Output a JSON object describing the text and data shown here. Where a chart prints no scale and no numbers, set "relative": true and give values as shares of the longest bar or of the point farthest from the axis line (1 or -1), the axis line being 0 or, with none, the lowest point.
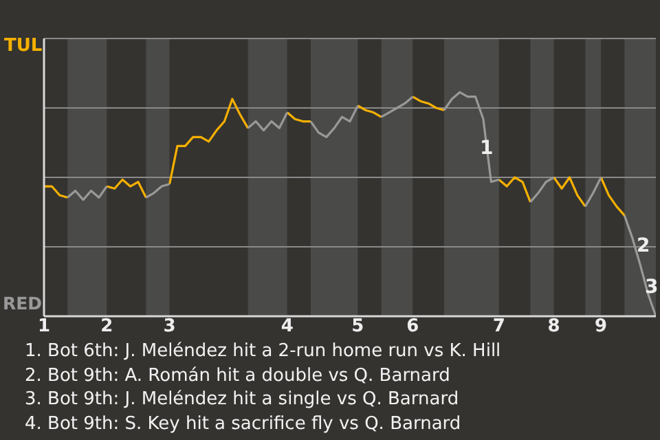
{
  "chart_data": {
    "type": "line",
    "relative": true,
    "categories": [
      "1",
      null,
      null,
      null,
      null,
      null,
      null,
      null,
      "2",
      null,
      null,
      null,
      null,
      null,
      null,
      null,
      "3",
      null,
      null,
      null,
      null,
      null,
      null,
      null,
      null,
      null,
      null,
      null,
      null,
      null,
      null,
      "4",
      null,
      null,
      null,
      null,
      null,
      null,
      null,
      null,
      "5",
      null,
      null,
      null,
      null,
      null,
      null,
      "6",
      null,
      null,
      null,
      null,
      null,
      null,
      null,
      null,
      null,
      null,
      "7",
      null,
      null,
      null,
      null,
      null,
      null,
      "8",
      null,
      null,
      null,
      null,
      null,
      "9",
      null,
      null,
      null,
      null,
      null,
      null,
      null
    ],
    "series": [
      {
        "color": "#f5b000",
        "values": [
          0.58,
          0.58,
          0.54,
          0.53,
          null,
          null,
          null,
          null,
          0.58,
          0.57,
          0.61,
          0.58,
          0.6,
          0.53,
          null,
          null,
          0.59,
          0.76,
          0.76,
          0.8,
          0.8,
          0.78,
          0.83,
          0.87,
          0.97,
          0.9,
          0.84,
          null,
          null,
          null,
          null,
          0.91,
          0.88,
          0.87,
          0.87,
          null,
          null,
          null,
          null,
          null,
          0.94,
          0.92,
          0.91,
          0.89,
          null,
          null,
          null,
          0.98,
          0.96,
          0.95,
          0.93,
          0.92,
          null,
          null,
          null,
          null,
          null,
          null,
          0.61,
          0.58,
          0.62,
          0.6,
          0.51,
          null,
          null,
          0.62,
          0.57,
          0.62,
          0.54,
          0.49,
          null,
          0.62,
          0.54,
          0.49,
          0.45,
          null,
          null,
          null,
          null
        ]
      },
      {
        "color": "#999999",
        "values": [
          null,
          null,
          null,
          0.53,
          0.56,
          0.52,
          0.56,
          0.53,
          0.58,
          null,
          null,
          null,
          null,
          0.53,
          0.55,
          0.58,
          0.59,
          null,
          null,
          null,
          null,
          null,
          null,
          null,
          null,
          null,
          0.84,
          0.87,
          0.83,
          0.87,
          0.84,
          0.91,
          null,
          null,
          0.87,
          0.82,
          0.8,
          0.84,
          0.89,
          0.87,
          0.94,
          null,
          null,
          0.89,
          0.91,
          0.93,
          0.95,
          0.98,
          null,
          null,
          null,
          0.92,
          0.97,
          1,
          0.98,
          0.98,
          0.88,
          0.6,
          0.61,
          null,
          null,
          null,
          0.51,
          0.55,
          0.6,
          0.62,
          null,
          null,
          null,
          0.49,
          0.55,
          0.62,
          null,
          null,
          0.45,
          0.35,
          0.23,
          0.1,
          0
        ]
      }
    ],
    "grid": "y",
    "annotations": [
      "TUL",
      "RED",
      "1",
      "2",
      "3",
      "1. Bot 6th: J. Meléndez hit a 2-run home run vs K. Hill",
      "2. Bot 9th: A. Román hit a double vs Q. Barnard",
      "3. Bot 9th: J. Meléndez hit a single vs Q. Barnard",
      "4. Bot 9th: S. Key hit a sacrifice fly vs Q. Barnard"
    ]
  }
}
